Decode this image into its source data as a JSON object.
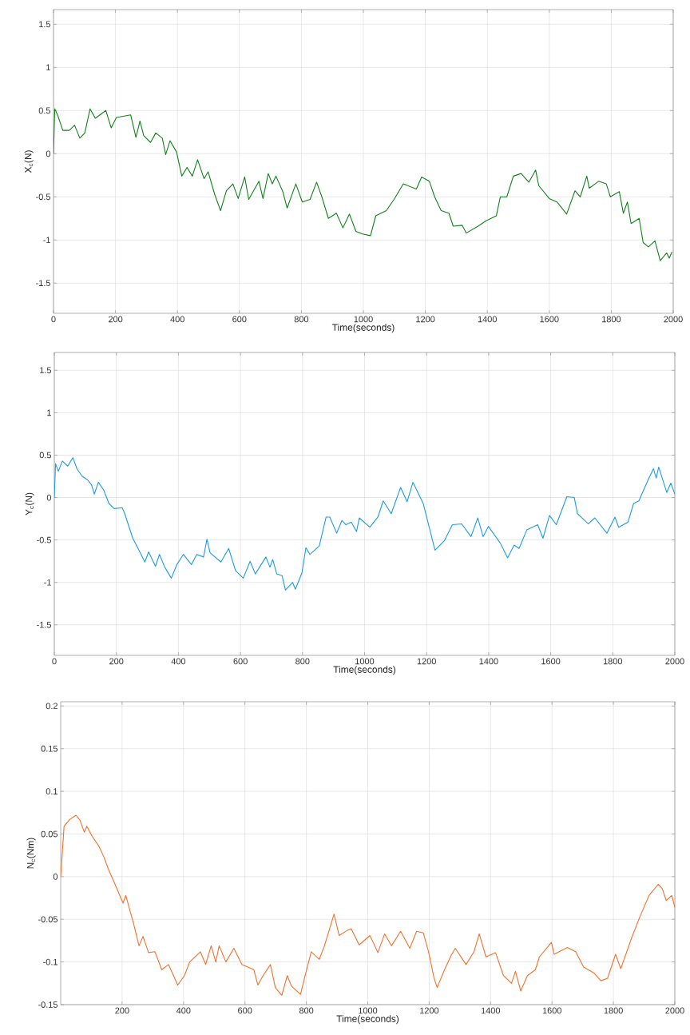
{
  "chart_data": [
    {
      "type": "line",
      "xlabel": "Time(seconds)",
      "ylabel": "X$_{c}$(N)",
      "xlim": [
        0,
        2000
      ],
      "ylim": [
        -1.85,
        1.67
      ],
      "xticks": [
        0,
        200,
        400,
        600,
        800,
        1000,
        1200,
        1400,
        1600,
        1800,
        2000
      ],
      "yticks": [
        -1.5,
        -1,
        -0.5,
        0,
        0.5,
        1,
        1.5
      ],
      "grid": true,
      "x": [
        0,
        4,
        13,
        30,
        51,
        68,
        85,
        101,
        118,
        135,
        169,
        186,
        203,
        249,
        266,
        279,
        291,
        313,
        330,
        351,
        362,
        376,
        397,
        414,
        431,
        448,
        465,
        486,
        499,
        520,
        539,
        558,
        579,
        596,
        617,
        630,
        663,
        676,
        693,
        706,
        718,
        740,
        754,
        782,
        803,
        828,
        849,
        866,
        887,
        913,
        934,
        955,
        976,
        997,
        1023,
        1040,
        1074,
        1099,
        1129,
        1171,
        1188,
        1213,
        1230,
        1251,
        1276,
        1290,
        1319,
        1332,
        1370,
        1395,
        1429,
        1442,
        1463,
        1484,
        1509,
        1534,
        1556,
        1566,
        1600,
        1625,
        1656,
        1683,
        1700,
        1721,
        1729,
        1759,
        1784,
        1797,
        1826,
        1839,
        1852,
        1864,
        1890,
        1903,
        1920,
        1941,
        1958,
        1979,
        1987,
        1996
      ],
      "series": [
        {
          "color": "#12801a",
          "values": [
            0,
            0.52,
            0.45,
            0.27,
            0.27,
            0.33,
            0.18,
            0.24,
            0.52,
            0.41,
            0.5,
            0.3,
            0.42,
            0.45,
            0.19,
            0.38,
            0.21,
            0.13,
            0.24,
            0.18,
            -0.01,
            0.15,
            0.02,
            -0.26,
            -0.16,
            -0.26,
            -0.07,
            -0.29,
            -0.21,
            -0.47,
            -0.66,
            -0.43,
            -0.35,
            -0.52,
            -0.27,
            -0.53,
            -0.32,
            -0.52,
            -0.23,
            -0.35,
            -0.26,
            -0.44,
            -0.63,
            -0.35,
            -0.56,
            -0.53,
            -0.33,
            -0.5,
            -0.75,
            -0.69,
            -0.86,
            -0.7,
            -0.9,
            -0.93,
            -0.95,
            -0.72,
            -0.66,
            -0.53,
            -0.35,
            -0.41,
            -0.27,
            -0.32,
            -0.5,
            -0.66,
            -0.69,
            -0.84,
            -0.83,
            -0.92,
            -0.84,
            -0.78,
            -0.72,
            -0.5,
            -0.5,
            -0.26,
            -0.23,
            -0.33,
            -0.19,
            -0.37,
            -0.52,
            -0.56,
            -0.7,
            -0.43,
            -0.5,
            -0.26,
            -0.4,
            -0.32,
            -0.35,
            -0.5,
            -0.44,
            -0.69,
            -0.56,
            -0.81,
            -0.75,
            -1.03,
            -1.08,
            -1.01,
            -1.24,
            -1.15,
            -1.21,
            -1.14
          ]
        }
      ]
    },
    {
      "type": "line",
      "xlabel": "Time(seconds)",
      "ylabel": "Y$_{c}$(N)",
      "xlim": [
        0,
        2000
      ],
      "ylim": [
        -1.86,
        1.71
      ],
      "xticks": [
        0,
        200,
        400,
        600,
        800,
        1000,
        1200,
        1400,
        1600,
        1800,
        2000
      ],
      "yticks": [
        -1.5,
        -1,
        -0.5,
        0,
        0.5,
        1,
        1.5
      ],
      "grid": true,
      "x": [
        0,
        4,
        13,
        26,
        43,
        60,
        73,
        90,
        107,
        120,
        129,
        142,
        159,
        176,
        193,
        219,
        227,
        253,
        270,
        292,
        304,
        326,
        339,
        356,
        377,
        395,
        416,
        442,
        459,
        481,
        492,
        502,
        537,
        562,
        584,
        609,
        631,
        648,
        682,
        695,
        704,
        717,
        734,
        745,
        768,
        777,
        798,
        811,
        824,
        854,
        876,
        888,
        910,
        927,
        940,
        957,
        974,
        983,
        1017,
        1043,
        1060,
        1086,
        1116,
        1137,
        1156,
        1189,
        1227,
        1257,
        1283,
        1313,
        1343,
        1365,
        1382,
        1399,
        1438,
        1461,
        1482,
        1498,
        1523,
        1558,
        1575,
        1596,
        1618,
        1652,
        1676,
        1686,
        1721,
        1742,
        1781,
        1807,
        1819,
        1849,
        1867,
        1884,
        1914,
        1931,
        1940,
        1948,
        1974,
        1987,
        2000
      ],
      "series": [
        {
          "color": "#1e9be2",
          "values": [
            0,
            0.4,
            0.31,
            0.43,
            0.37,
            0.47,
            0.34,
            0.25,
            0.21,
            0.15,
            0.04,
            0.18,
            0.09,
            -0.07,
            -0.13,
            -0.12,
            -0.19,
            -0.48,
            -0.6,
            -0.76,
            -0.64,
            -0.81,
            -0.67,
            -0.82,
            -0.95,
            -0.79,
            -0.67,
            -0.79,
            -0.67,
            -0.7,
            -0.49,
            -0.65,
            -0.76,
            -0.6,
            -0.86,
            -0.95,
            -0.75,
            -0.9,
            -0.7,
            -0.82,
            -0.73,
            -0.9,
            -0.92,
            -1.09,
            -1.0,
            -1.08,
            -0.89,
            -0.59,
            -0.67,
            -0.57,
            -0.23,
            -0.23,
            -0.42,
            -0.27,
            -0.32,
            -0.29,
            -0.4,
            -0.24,
            -0.35,
            -0.23,
            -0.04,
            -0.19,
            0.12,
            -0.05,
            0.18,
            -0.07,
            -0.62,
            -0.51,
            -0.32,
            -0.31,
            -0.46,
            -0.24,
            -0.46,
            -0.34,
            -0.54,
            -0.71,
            -0.56,
            -0.6,
            -0.38,
            -0.32,
            -0.48,
            -0.21,
            -0.32,
            0.01,
            0.0,
            -0.19,
            -0.31,
            -0.24,
            -0.42,
            -0.23,
            -0.35,
            -0.29,
            -0.07,
            -0.04,
            0.21,
            0.34,
            0.23,
            0.36,
            0.06,
            0.17,
            0.04
          ]
        }
      ]
    },
    {
      "type": "line",
      "xlabel": "Time(seconds)",
      "ylabel": "N$_{c}$(Nm)",
      "xlim": [
        0,
        2000
      ],
      "ylim": [
        -0.15,
        0.205
      ],
      "xticks": [
        200,
        400,
        600,
        800,
        1000,
        1200,
        1400,
        1600,
        1800,
        2000
      ],
      "yticks": [
        -0.15,
        -0.1,
        -0.05,
        0,
        0.05,
        0.1,
        0.15,
        0.2
      ],
      "grid": true,
      "x": [
        0,
        11,
        29,
        50,
        63,
        77,
        85,
        103,
        124,
        142,
        155,
        177,
        203,
        212,
        238,
        255,
        268,
        286,
        307,
        329,
        351,
        381,
        403,
        420,
        455,
        472,
        490,
        505,
        516,
        538,
        564,
        590,
        629,
        642,
        659,
        683,
        699,
        720,
        738,
        751,
        781,
        798,
        816,
        842,
        859,
        890,
        907,
        933,
        946,
        972,
        1007,
        1033,
        1055,
        1077,
        1107,
        1137,
        1159,
        1181,
        1198,
        1216,
        1226,
        1250,
        1272,
        1285,
        1320,
        1346,
        1363,
        1385,
        1416,
        1442,
        1468,
        1481,
        1498,
        1520,
        1546,
        1559,
        1598,
        1607,
        1650,
        1677,
        1703,
        1737,
        1759,
        1781,
        1807,
        1824,
        1859,
        1885,
        1916,
        1946,
        1959,
        1972,
        1990,
        2000
      ],
      "series": [
        {
          "color": "#f0712e",
          "values": [
            0,
            0.059,
            0.067,
            0.072,
            0.066,
            0.052,
            0.059,
            0.047,
            0.036,
            0.022,
            0.009,
            -0.009,
            -0.031,
            -0.022,
            -0.056,
            -0.081,
            -0.07,
            -0.089,
            -0.088,
            -0.109,
            -0.103,
            -0.127,
            -0.116,
            -0.1,
            -0.088,
            -0.103,
            -0.081,
            -0.1,
            -0.081,
            -0.1,
            -0.084,
            -0.103,
            -0.109,
            -0.127,
            -0.116,
            -0.103,
            -0.13,
            -0.139,
            -0.116,
            -0.128,
            -0.138,
            -0.113,
            -0.088,
            -0.097,
            -0.081,
            -0.044,
            -0.069,
            -0.063,
            -0.061,
            -0.08,
            -0.069,
            -0.089,
            -0.067,
            -0.081,
            -0.064,
            -0.084,
            -0.064,
            -0.066,
            -0.088,
            -0.119,
            -0.13,
            -0.109,
            -0.092,
            -0.084,
            -0.103,
            -0.088,
            -0.067,
            -0.094,
            -0.089,
            -0.116,
            -0.125,
            -0.111,
            -0.134,
            -0.116,
            -0.109,
            -0.094,
            -0.077,
            -0.091,
            -0.083,
            -0.088,
            -0.106,
            -0.113,
            -0.122,
            -0.119,
            -0.091,
            -0.108,
            -0.072,
            -0.048,
            -0.022,
            -0.009,
            -0.014,
            -0.028,
            -0.022,
            -0.036
          ]
        }
      ]
    }
  ]
}
